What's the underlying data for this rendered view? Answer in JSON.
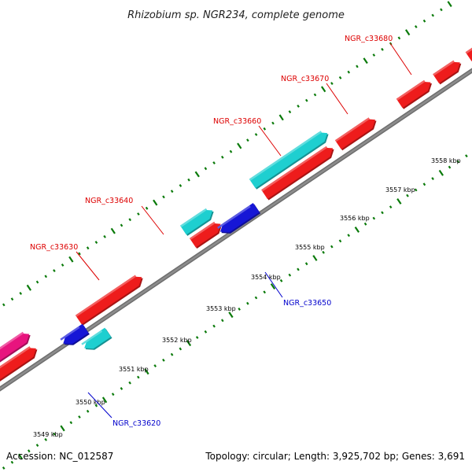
{
  "title": "Rhizobium sp. NGR234, complete genome",
  "footer": {
    "accession": "Accession: NC_012587",
    "summary": "Topology: circular; Length: 3,925,702 bp; Genes: 3,691"
  },
  "colors": {
    "backbone": "#8c8c8c",
    "tick": "#0a7a0a",
    "forward_label": "#dd0000",
    "reverse_label": "#0000cc"
  },
  "ticks": [
    "3549 kbp",
    "3550 kbp",
    "3551 kbp",
    "3552 kbp",
    "3553 kbp",
    "3554 kbp",
    "3555 kbp",
    "3556 kbp",
    "3557 kbp",
    "3558 kbp"
  ],
  "genes": [
    {
      "color": "#ee1c1c",
      "strand": "+"
    },
    {
      "color": "#ee1c1c",
      "strand": "+"
    },
    {
      "color": "#ee1c1c",
      "strand": "+"
    },
    {
      "color": "#ee1c1c",
      "strand": "+"
    },
    {
      "color": "#ee1c1c",
      "strand": "+"
    },
    {
      "color": "#ee1c1c",
      "strand": "+"
    },
    {
      "color": "#ee1c1c",
      "strand": "+"
    },
    {
      "color": "#ee1c1c",
      "strand": "+"
    },
    {
      "color": "#e8147e",
      "strand": "+"
    },
    {
      "color": "#1ecfd0",
      "strand": "+"
    },
    {
      "color": "#1ecfd0",
      "strand": "+"
    },
    {
      "color": "#1ecfd0",
      "strand": "-"
    },
    {
      "color": "#1616d6",
      "strand": "-"
    },
    {
      "color": "#1616d6",
      "strand": "-"
    }
  ],
  "labels": [
    {
      "text": "NGR_c33680",
      "strand": "+"
    },
    {
      "text": "NGR_c33670",
      "strand": "+"
    },
    {
      "text": "NGR_c33660",
      "strand": "+"
    },
    {
      "text": "NGR_c33640",
      "strand": "+"
    },
    {
      "text": "NGR_c33630",
      "strand": "+"
    },
    {
      "text": "NGR_c33650",
      "strand": "-"
    },
    {
      "text": "NGR_c33620",
      "strand": "-"
    }
  ]
}
